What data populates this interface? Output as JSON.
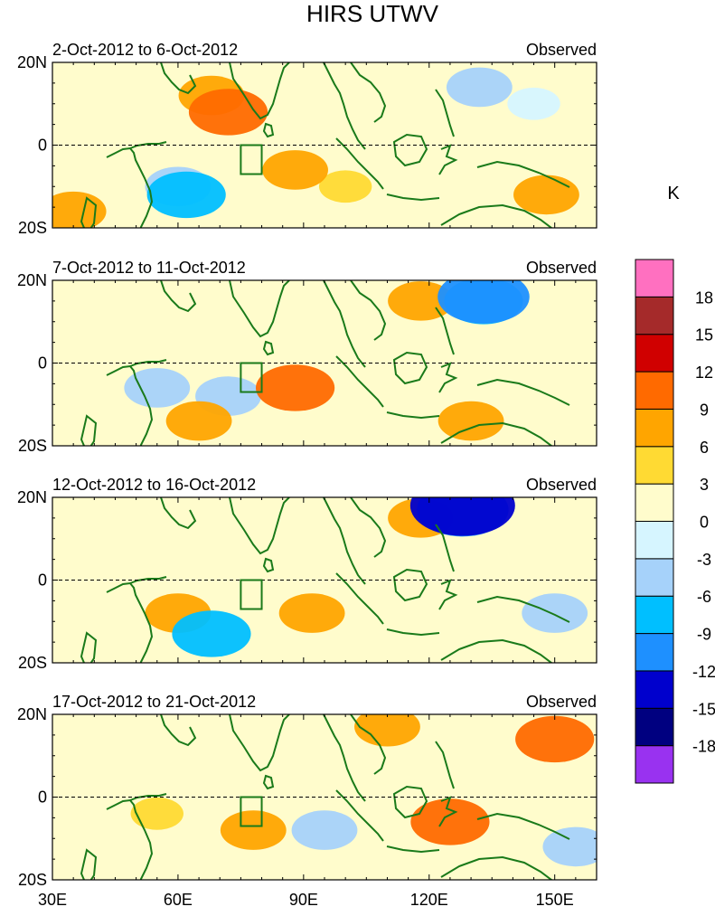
{
  "title": "HIRS UTWV",
  "units": "K",
  "chart_data": {
    "type": "heatmap",
    "title": "HIRS UTWV",
    "x_ticks": [
      "30E",
      "60E",
      "90E",
      "120E",
      "150E"
    ],
    "x_tick_values": [
      30,
      60,
      90,
      120,
      150
    ],
    "xlim": [
      30,
      160
    ],
    "y_ticks": [
      "20N",
      "0",
      "20S"
    ],
    "y_tick_values": [
      20,
      0,
      -20
    ],
    "ylim": [
      -20,
      20
    ],
    "region_box": {
      "lon": [
        75,
        80
      ],
      "lat": [
        -7,
        0
      ]
    },
    "colorbar": {
      "units": "K",
      "levels": [
        -18,
        -15,
        -12,
        -9,
        -6,
        -3,
        0,
        3,
        6,
        9,
        12,
        15,
        18
      ],
      "colors": [
        "#9932f0",
        "#000080",
        "#0000cd",
        "#1e90ff",
        "#00bfff",
        "#a6d2fa",
        "#d6f5ff",
        "#fffccc",
        "#ffda33",
        "#ffa500",
        "#ff6a00",
        "#d00000",
        "#a52a2a",
        "#ff70c0"
      ]
    },
    "panels": [
      {
        "period": "2-Oct-2012 to 6-Oct-2012",
        "label": "Observed",
        "anomalies": [
          {
            "lon": 72,
            "lat": 8,
            "value": 9
          },
          {
            "lon": 68,
            "lat": 12,
            "value": 6
          },
          {
            "lon": 88,
            "lat": -6,
            "value": 6
          },
          {
            "lon": 100,
            "lat": -10,
            "value": 3
          },
          {
            "lon": 60,
            "lat": -10,
            "value": -6
          },
          {
            "lon": 62,
            "lat": -12,
            "value": -9
          },
          {
            "lon": 132,
            "lat": 14,
            "value": -6
          },
          {
            "lon": 145,
            "lat": 10,
            "value": -3
          },
          {
            "lon": 148,
            "lat": -12,
            "value": 6
          },
          {
            "lon": 35,
            "lat": -16,
            "value": 6
          }
        ]
      },
      {
        "period": "7-Oct-2012 to 11-Oct-2012",
        "label": "Observed",
        "anomalies": [
          {
            "lon": 133,
            "lat": 15,
            "value": -9
          },
          {
            "lon": 133,
            "lat": 16,
            "value": -12
          },
          {
            "lon": 88,
            "lat": -6,
            "value": 9
          },
          {
            "lon": 118,
            "lat": 15,
            "value": 6
          },
          {
            "lon": 55,
            "lat": -6,
            "value": -6
          },
          {
            "lon": 72,
            "lat": -8,
            "value": -6
          },
          {
            "lon": 65,
            "lat": -14,
            "value": 6
          },
          {
            "lon": 130,
            "lat": -14,
            "value": 6
          }
        ]
      },
      {
        "period": "12-Oct-2012 to 16-Oct-2012",
        "label": "Observed",
        "anomalies": [
          {
            "lon": 128,
            "lat": 17,
            "value": -12
          },
          {
            "lon": 128,
            "lat": 18,
            "value": -15
          },
          {
            "lon": 68,
            "lat": -13,
            "value": -9
          },
          {
            "lon": 118,
            "lat": 15,
            "value": 6
          },
          {
            "lon": 92,
            "lat": -8,
            "value": 6
          },
          {
            "lon": 150,
            "lat": -8,
            "value": -6
          },
          {
            "lon": 60,
            "lat": -8,
            "value": 6
          }
        ]
      },
      {
        "period": "17-Oct-2012 to 21-Oct-2012",
        "label": "Observed",
        "anomalies": [
          {
            "lon": 125,
            "lat": -6,
            "value": 9
          },
          {
            "lon": 150,
            "lat": 14,
            "value": 9
          },
          {
            "lon": 110,
            "lat": 17,
            "value": 6
          },
          {
            "lon": 78,
            "lat": -8,
            "value": 6
          },
          {
            "lon": 95,
            "lat": -8,
            "value": -6
          },
          {
            "lon": 55,
            "lat": -4,
            "value": 3
          },
          {
            "lon": 155,
            "lat": -12,
            "value": -6
          }
        ]
      }
    ]
  }
}
